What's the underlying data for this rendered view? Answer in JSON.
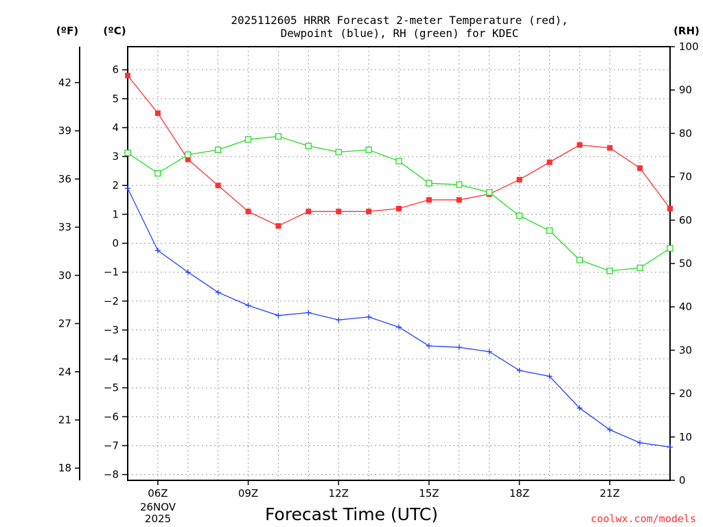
{
  "chart_data": {
    "type": "line",
    "title_line1": "2025112605 HRRR Forecast 2-meter Temperature (red),",
    "title_line2": "Dewpoint (blue), RH (green) for KDEC",
    "unit_f": "(ºF)",
    "unit_c": "(ºC)",
    "unit_rh": "(RH)",
    "xlabel": "Forecast Time (UTC)",
    "credit": "coolwx.com/models",
    "date_label_1": "26NOV",
    "date_label_2": "2025",
    "x_hours_utc": [
      5,
      6,
      7,
      8,
      9,
      10,
      11,
      12,
      13,
      14,
      15,
      16,
      17,
      18,
      19,
      20,
      21,
      22,
      23
    ],
    "x_range": [
      5,
      23
    ],
    "x_ticks": [
      {
        "hour": 6,
        "label": "06Z"
      },
      {
        "hour": 9,
        "label": "09Z"
      },
      {
        "hour": 12,
        "label": "12Z"
      },
      {
        "hour": 15,
        "label": "15Z"
      },
      {
        "hour": 18,
        "label": "18Z"
      },
      {
        "hour": 21,
        "label": "21Z"
      }
    ],
    "celsius_range": [
      -8.2,
      6.8
    ],
    "celsius_ticks": [
      -8,
      -7,
      -6,
      -5,
      -4,
      -3,
      -2,
      -1,
      0,
      1,
      2,
      3,
      4,
      5,
      6
    ],
    "fahrenheit_ticks": [
      18,
      21,
      24,
      27,
      30,
      33,
      36,
      39,
      42
    ],
    "rh_range": [
      0,
      100
    ],
    "rh_ticks": [
      0,
      10,
      20,
      30,
      40,
      50,
      60,
      70,
      80,
      90,
      100
    ],
    "series": [
      {
        "name": "Temperature",
        "unit": "C",
        "color": "#ff3030",
        "axis": "celsius",
        "marker": "filled-square",
        "values": [
          5.8,
          4.5,
          2.9,
          2.0,
          1.1,
          0.6,
          1.1,
          1.1,
          1.1,
          1.2,
          1.5,
          1.5,
          1.7,
          2.2,
          2.8,
          3.4,
          3.3,
          2.6,
          1.2
        ]
      },
      {
        "name": "Dewpoint",
        "unit": "C",
        "color": "#2040ff",
        "axis": "celsius",
        "marker": "plus",
        "values": [
          1.9,
          -0.25,
          -1.0,
          -1.7,
          -2.15,
          -2.5,
          -2.4,
          -2.65,
          -2.55,
          -2.9,
          -3.55,
          -3.6,
          -3.75,
          -4.4,
          -4.6,
          -5.7,
          -6.45,
          -6.9,
          -7.05
        ]
      },
      {
        "name": "RH",
        "unit": "%",
        "color": "#20dd20",
        "axis": "rh",
        "marker": "open-square",
        "values": [
          75.5,
          70.8,
          75.1,
          76.2,
          78.6,
          79.3,
          77.1,
          75.7,
          76.2,
          73.6,
          68.5,
          68.2,
          66.4,
          61.0,
          57.6,
          50.8,
          48.3,
          49.0,
          53.5
        ]
      }
    ],
    "grid": true
  }
}
